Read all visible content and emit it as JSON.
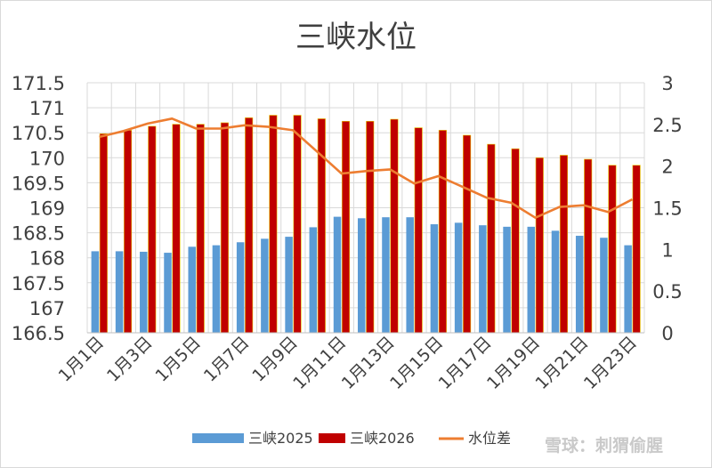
{
  "chart_data": {
    "type": "bar",
    "title": "三峡水位",
    "categories": [
      "1月1日",
      "1月2日",
      "1月3日",
      "1月4日",
      "1月5日",
      "1月6日",
      "1月7日",
      "1月8日",
      "1月9日",
      "1月10日",
      "1月11日",
      "1月12日",
      "1月13日",
      "1月14日",
      "1月15日",
      "1月16日",
      "1月17日",
      "1月18日",
      "1月19日",
      "1月20日",
      "1月21日",
      "1月22日",
      "1月23日"
    ],
    "tick_labels": [
      "1月1日",
      "1月3日",
      "1月5日",
      "1月7日",
      "1月9日",
      "1月11日",
      "1月13日",
      "1月15日",
      "1月17日",
      "1月19日",
      "1月21日",
      "1月23日"
    ],
    "y_left": {
      "min": 166.5,
      "max": 171.5,
      "step": 0.5,
      "ticks": [
        "166.5",
        "167",
        "167.5",
        "168",
        "168.5",
        "169",
        "169.5",
        "170",
        "170.5",
        "171",
        "171.5"
      ]
    },
    "y_right": {
      "min": 0,
      "max": 3,
      "step": 0.5,
      "ticks": [
        "0",
        "0.5",
        "1",
        "1.5",
        "2",
        "2.5",
        "3"
      ]
    },
    "grid": true,
    "legend_position": "bottom",
    "series": [
      {
        "name": "三峡2025",
        "kind": "bar",
        "axis": "left",
        "color": "#5b9bd5",
        "values": [
          168.13,
          168.13,
          168.12,
          168.1,
          168.22,
          168.25,
          168.31,
          168.38,
          168.42,
          168.61,
          168.82,
          168.79,
          168.81,
          168.81,
          168.67,
          168.7,
          168.65,
          168.62,
          168.62,
          168.54,
          168.44,
          168.4,
          168.25
        ]
      },
      {
        "name": "三峡2026",
        "kind": "bar",
        "axis": "left",
        "color": "#c00000",
        "values": [
          170.48,
          170.55,
          170.63,
          170.67,
          170.67,
          170.7,
          170.8,
          170.85,
          170.85,
          170.78,
          170.73,
          170.73,
          170.77,
          170.6,
          170.55,
          170.45,
          170.27,
          170.18,
          170.0,
          170.05,
          169.97,
          169.85,
          169.85
        ]
      },
      {
        "name": "水位差",
        "kind": "line",
        "axis": "right",
        "color": "#ed7d31",
        "values": [
          2.35,
          2.42,
          2.51,
          2.57,
          2.45,
          2.45,
          2.49,
          2.47,
          2.43,
          2.17,
          1.91,
          1.94,
          1.96,
          1.79,
          1.88,
          1.75,
          1.62,
          1.56,
          1.38,
          1.51,
          1.53,
          1.45,
          1.6
        ]
      }
    ]
  },
  "watermark": "雪球：刺猬偷腥"
}
